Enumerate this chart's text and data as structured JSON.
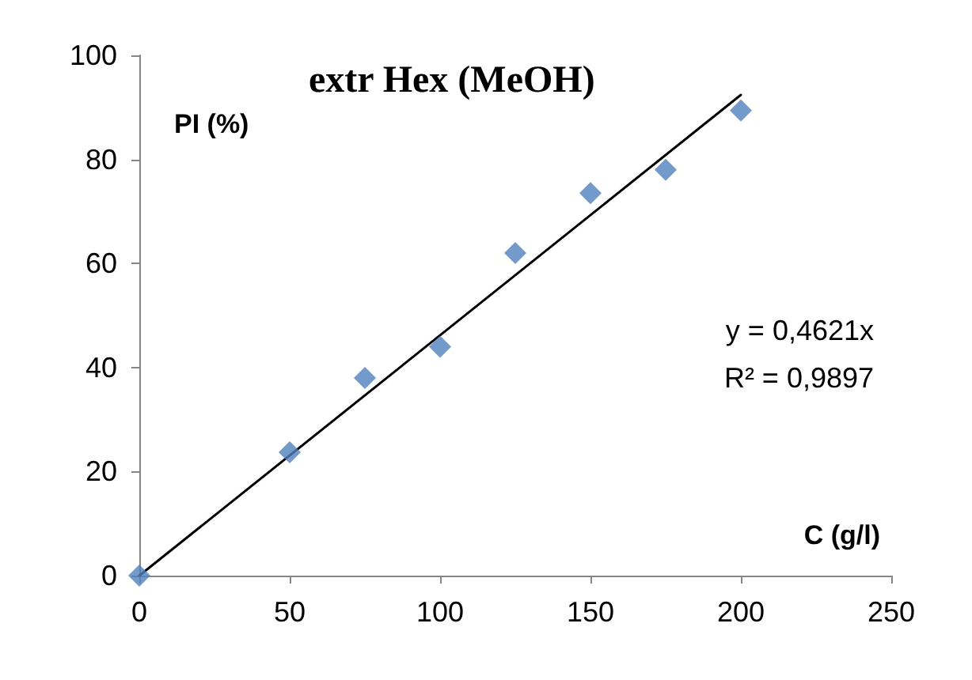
{
  "chart_data": {
    "type": "scatter",
    "title": "extr Hex (MeOH)",
    "xlabel": "C (g/l)",
    "ylabel": "PI (%)",
    "series": [
      {
        "color": "#4f81bd",
        "x": [
          0,
          50,
          75,
          100,
          125,
          150,
          175,
          200
        ],
        "values": [
          0,
          23.7,
          38,
          44,
          62,
          73.5,
          78,
          89.4
        ],
        "marker": "diamond"
      },
      {
        "type": "line",
        "color": "#000000",
        "x": [
          0,
          200
        ],
        "values": [
          0,
          92.4
        ],
        "marker": "none",
        "line_style": "solid"
      }
    ],
    "annotations": [
      "y = 0,4621x",
      "R² = 0,9897"
    ],
    "xlim": [
      0,
      250
    ],
    "xticks": [
      0,
      50,
      100,
      150,
      200,
      250
    ],
    "ylim": [
      0,
      100
    ],
    "yticks": [
      0,
      20,
      40,
      60,
      80,
      100
    ],
    "grid": false
  }
}
